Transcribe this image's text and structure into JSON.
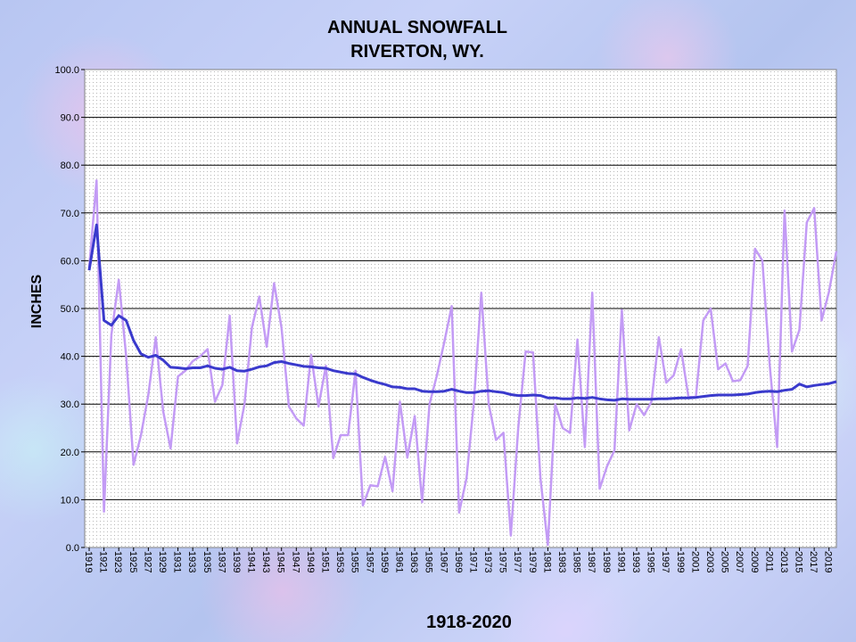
{
  "chart_data": {
    "type": "line",
    "title": [
      "ANNUAL SNOWFALL",
      "RIVERTON, WY."
    ],
    "ylabel": "INCHES",
    "xlabel": "1918-2020",
    "ylim": [
      0,
      100
    ],
    "yticks": [
      "0.0",
      "10.0",
      "20.0",
      "30.0",
      "40.0",
      "50.0",
      "60.0",
      "70.0",
      "80.0",
      "90.0",
      "100.0"
    ],
    "xtick_labels": [
      "1919",
      "1921",
      "1923",
      "1925",
      "1927",
      "1929",
      "1931",
      "1933",
      "1935",
      "1937",
      "1939",
      "1941",
      "1943",
      "1945",
      "1947",
      "1949",
      "1951",
      "1953",
      "1955",
      "1957",
      "1959",
      "1961",
      "1963",
      "1965",
      "1967",
      "1969",
      "1971",
      "1973",
      "1975",
      "1977",
      "1979",
      "1981",
      "1983",
      "1985",
      "1987",
      "1989",
      "1991",
      "1993",
      "1995",
      "1997",
      "1999",
      "2001",
      "2003",
      "2005",
      "2007",
      "2009",
      "2011",
      "2013",
      "2015",
      "2017",
      "2019"
    ],
    "grid": true,
    "legend": "none",
    "x": [
      1919,
      1920,
      1921,
      1922,
      1923,
      1924,
      1925,
      1926,
      1927,
      1928,
      1929,
      1930,
      1931,
      1932,
      1933,
      1934,
      1935,
      1936,
      1937,
      1938,
      1939,
      1940,
      1941,
      1942,
      1943,
      1944,
      1945,
      1946,
      1947,
      1948,
      1949,
      1950,
      1951,
      1952,
      1953,
      1954,
      1955,
      1956,
      1957,
      1958,
      1959,
      1960,
      1961,
      1962,
      1963,
      1964,
      1965,
      1966,
      1967,
      1968,
      1969,
      1970,
      1971,
      1972,
      1973,
      1974,
      1975,
      1976,
      1977,
      1978,
      1979,
      1980,
      1981,
      1982,
      1983,
      1984,
      1985,
      1986,
      1987,
      1988,
      1989,
      1990,
      1991,
      1992,
      1993,
      1994,
      1995,
      1996,
      1997,
      1998,
      1999,
      2000,
      2001,
      2002,
      2003,
      2004,
      2005,
      2006,
      2007,
      2008,
      2009,
      2010,
      2011,
      2012,
      2013,
      2014,
      2015,
      2016,
      2017,
      2018,
      2019,
      2020
    ],
    "series": [
      {
        "color": "#c39bf5",
        "values": [
          58.5,
          76.8,
          7.5,
          44.5,
          56.0,
          40.0,
          17.3,
          23.5,
          32.0,
          44.0,
          28.5,
          20.7,
          35.8,
          37.0,
          39.0,
          40.0,
          41.5,
          30.5,
          34.0,
          48.5,
          21.8,
          30.0,
          46.0,
          52.5,
          42.0,
          55.3,
          46.0,
          29.5,
          27.0,
          25.5,
          40.3,
          29.5,
          38.0,
          18.7,
          23.5,
          23.5,
          37.0,
          8.8,
          13.0,
          12.8,
          19.0,
          11.8,
          30.5,
          18.8,
          27.5,
          9.5,
          30.0,
          36.0,
          43.0,
          50.5,
          7.3,
          14.5,
          30.5,
          53.3,
          30.0,
          22.5,
          24.0,
          2.5,
          25.0,
          41.0,
          40.8,
          14.5,
          0.5,
          30.0,
          25.0,
          24.0,
          43.5,
          21.0,
          53.3,
          12.3,
          17.0,
          20.3,
          49.7,
          24.5,
          30.0,
          27.7,
          30.5,
          44.0,
          34.5,
          36.0,
          41.5,
          31.5,
          31.5,
          47.5,
          50.0,
          37.3,
          38.5,
          34.8,
          35.0,
          38.0,
          62.5,
          60.0,
          38.0,
          21.0,
          70.5,
          41.0,
          45.5,
          68.0,
          71.0,
          47.5,
          53.5,
          62.0
        ]
      },
      {
        "color": "#3a3acc",
        "values": [
          58.0,
          67.5,
          47.5,
          46.5,
          48.5,
          47.5,
          43.3,
          40.5,
          39.8,
          40.2,
          39.2,
          37.7,
          37.6,
          37.4,
          37.6,
          37.6,
          38.0,
          37.5,
          37.3,
          37.7,
          37.0,
          36.9,
          37.3,
          37.8,
          38.0,
          38.7,
          38.9,
          38.5,
          38.2,
          37.9,
          37.8,
          37.6,
          37.5,
          37.0,
          36.7,
          36.4,
          36.3,
          35.6,
          35.0,
          34.5,
          34.1,
          33.6,
          33.5,
          33.2,
          33.2,
          32.7,
          32.6,
          32.6,
          32.7,
          33.1,
          32.7,
          32.4,
          32.4,
          32.7,
          32.8,
          32.6,
          32.4,
          32.0,
          31.8,
          31.8,
          31.9,
          31.8,
          31.3,
          31.3,
          31.1,
          31.1,
          31.3,
          31.2,
          31.4,
          31.1,
          30.9,
          30.8,
          31.1,
          31.0,
          31.0,
          31.0,
          31.0,
          31.1,
          31.1,
          31.2,
          31.3,
          31.3,
          31.4,
          31.6,
          31.8,
          31.9,
          31.9,
          31.9,
          32.0,
          32.1,
          32.4,
          32.6,
          32.7,
          32.6,
          32.9,
          33.1,
          34.2,
          33.6,
          33.9,
          34.1,
          34.3,
          34.7
        ]
      }
    ]
  }
}
